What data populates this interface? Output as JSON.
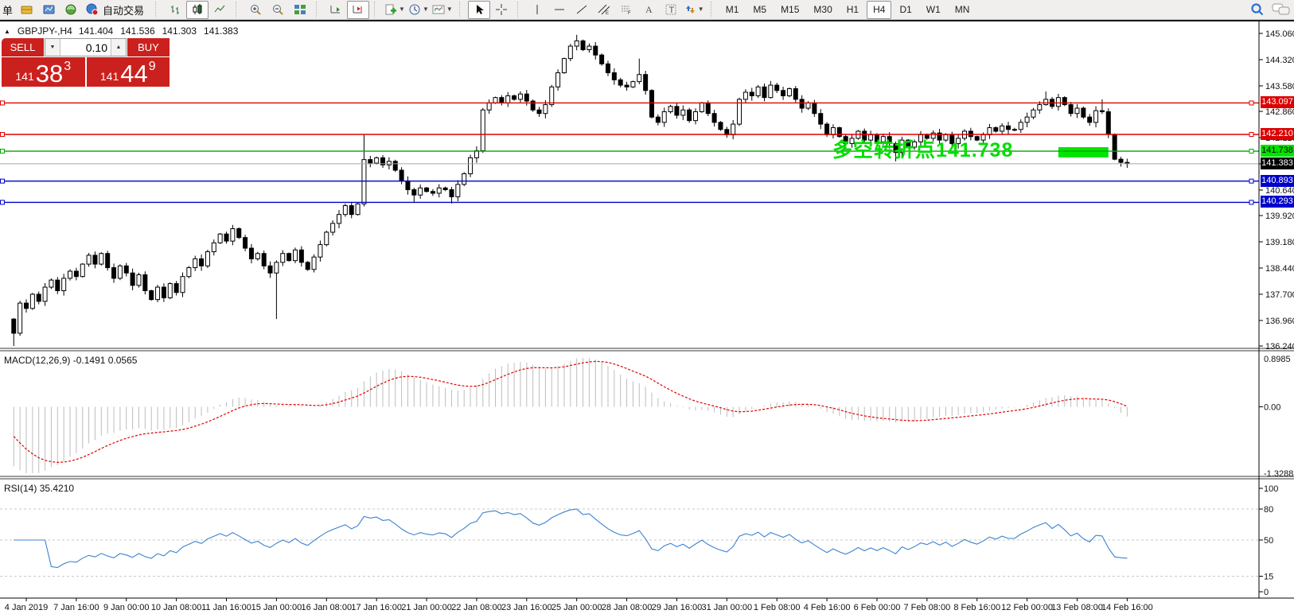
{
  "toolbar": {
    "order_label": "单",
    "autotrading_label": "自动交易",
    "timeframes": [
      "M1",
      "M5",
      "M15",
      "M30",
      "H1",
      "H4",
      "D1",
      "W1",
      "MN"
    ],
    "active_timeframe": "H4",
    "active_chart_type": "candlestick"
  },
  "chart": {
    "title": {
      "symbol_period": "GBPJPY-,H4",
      "open": "141.404",
      "high": "141.536",
      "low": "141.303",
      "close": "141.383"
    },
    "one_click": {
      "sell_label": "SELL",
      "buy_label": "BUY",
      "volume": "0.10",
      "sell_price_prefix": "141",
      "sell_price_big": "38",
      "sell_price_sup": "3",
      "buy_price_prefix": "141",
      "buy_price_big": "44",
      "buy_price_sup": "9"
    },
    "annotation": {
      "text": "多空转折点141.738",
      "color": "#00dd00"
    },
    "current_price": {
      "price": 141.383,
      "label": "141.383",
      "line_color": "#a8a8a8",
      "label_bg": "#000000",
      "label_fg": "#ffffff"
    },
    "levels": [
      {
        "price": 143.097,
        "label": "143.097",
        "line_color": "#e00000",
        "label_bg": "#dd0000",
        "label_fg": "#ffffff"
      },
      {
        "price": 142.21,
        "label": "142.210",
        "line_color": "#e00000",
        "label_bg": "#dd0000",
        "label_fg": "#ffffff"
      },
      {
        "price": 141.738,
        "label": "141.738",
        "line_color": "#00a800",
        "label_bg": "#00e400",
        "label_fg": "#000000"
      },
      {
        "price": 140.893,
        "label": "140.893",
        "line_color": "#0000cc",
        "label_bg": "#0000cc",
        "label_fg": "#ffffff"
      },
      {
        "price": 140.293,
        "label": "140.293",
        "line_color": "#0000cc",
        "label_bg": "#0000cc",
        "label_fg": "#ffffff"
      }
    ],
    "rectangle": {
      "bar_start": 167,
      "bar_end": 175,
      "price_top": 141.85,
      "price_bottom": 141.56,
      "color": "#00e400"
    }
  },
  "macd": {
    "label": "MACD(12,26,9)",
    "values": "-0.1491 0.0565",
    "axis_top": "0.8985",
    "axis_zero": "0.00",
    "axis_bottom": "-1.3288",
    "params": [
      12,
      26,
      9
    ]
  },
  "rsi": {
    "label": "RSI(14)",
    "value": "35.4210",
    "period": 14,
    "axis_labels": [
      "100",
      "80",
      "50",
      "15",
      "0"
    ],
    "axis_values": [
      100,
      80,
      50,
      15,
      0
    ],
    "levels": [
      80,
      50,
      15
    ]
  },
  "price_axis_ticks": [
    "145.060",
    "144.320",
    "143.580",
    "142.860",
    "142.120",
    "141.380",
    "140.640",
    "139.920",
    "139.180",
    "138.440",
    "137.700",
    "136.960",
    "136.240"
  ],
  "time_axis": [
    "4 Jan 2019",
    "7 Jan 16:00",
    "9 Jan 00:00",
    "10 Jan 08:00",
    "11 Jan 16:00",
    "15 Jan 00:00",
    "16 Jan 08:00",
    "17 Jan 16:00",
    "21 Jan 00:00",
    "22 Jan 08:00",
    "23 Jan 16:00",
    "25 Jan 00:00",
    "28 Jan 08:00",
    "29 Jan 16:00",
    "31 Jan 00:00",
    "1 Feb 08:00",
    "4 Feb 16:00",
    "6 Feb 00:00",
    "7 Feb 08:00",
    "8 Feb 16:00",
    "12 Feb 00:00",
    "13 Feb 08:00",
    "14 Feb 16:00"
  ],
  "chart_data": {
    "type": "candlestick",
    "symbol": "GBPJPY-",
    "timeframe": "H4",
    "ohlc_current": {
      "open": 141.404,
      "high": 141.536,
      "low": 141.303,
      "close": 141.383
    },
    "price_axis": {
      "min": 136.24,
      "max": 145.06,
      "step": 0.74
    },
    "first_label_bar": 2,
    "label_every": 8,
    "seed_closes": [
      142.0,
      141.6,
      141.2,
      140.6,
      139.8,
      138.8,
      137.8,
      137.0
    ],
    "closes": [
      136.6,
      137.45,
      137.3,
      137.7,
      137.5,
      137.9,
      138.1,
      137.8,
      138.15,
      138.35,
      138.2,
      138.55,
      138.8,
      138.55,
      138.85,
      138.45,
      138.15,
      138.5,
      138.3,
      137.95,
      138.25,
      137.8,
      137.55,
      137.9,
      137.6,
      138.0,
      137.75,
      138.2,
      138.45,
      138.7,
      138.5,
      138.9,
      139.15,
      139.4,
      139.2,
      139.55,
      139.3,
      139.0,
      138.7,
      138.85,
      138.5,
      138.3,
      138.6,
      138.85,
      138.65,
      138.95,
      138.6,
      138.4,
      138.75,
      139.1,
      139.45,
      139.7,
      139.95,
      140.2,
      139.95,
      140.25,
      141.5,
      141.4,
      141.55,
      141.35,
      141.45,
      141.2,
      140.9,
      140.65,
      140.5,
      140.7,
      140.6,
      140.55,
      140.7,
      140.65,
      140.45,
      140.8,
      141.1,
      141.55,
      141.75,
      142.9,
      143.1,
      143.25,
      143.1,
      143.3,
      143.2,
      143.35,
      143.15,
      142.9,
      142.8,
      143.05,
      143.55,
      143.95,
      144.35,
      144.7,
      144.85,
      144.6,
      144.7,
      144.45,
      144.2,
      143.95,
      143.75,
      143.6,
      143.55,
      143.7,
      143.9,
      143.45,
      142.7,
      142.55,
      142.85,
      143.0,
      142.75,
      142.9,
      142.6,
      142.85,
      143.1,
      142.8,
      142.55,
      142.35,
      142.2,
      142.5,
      143.2,
      143.4,
      143.3,
      143.55,
      143.25,
      143.6,
      143.45,
      143.3,
      143.5,
      143.2,
      142.95,
      143.1,
      142.8,
      142.5,
      142.2,
      142.4,
      142.15,
      141.95,
      142.1,
      142.3,
      142.05,
      142.2,
      142.0,
      142.15,
      141.95,
      141.7,
      142.05,
      141.85,
      142.0,
      142.2,
      142.1,
      142.25,
      142.05,
      142.2,
      141.95,
      142.1,
      142.3,
      142.15,
      142.05,
      142.2,
      142.4,
      142.3,
      142.45,
      142.35,
      142.35,
      142.55,
      142.7,
      142.9,
      143.05,
      143.2,
      143.0,
      143.25,
      143.05,
      142.8,
      142.95,
      142.7,
      142.55,
      142.88,
      142.85,
      142.21,
      141.51,
      141.42,
      141.383
    ],
    "wick_overrides": {
      "0": {
        "l": 136.24
      },
      "42": {
        "l": 137.0
      },
      "56": {
        "h": 142.2
      },
      "64": {
        "l": 140.3
      },
      "70": {
        "l": 140.26
      },
      "90": {
        "h": 145.02
      },
      "100": {
        "h": 144.35
      },
      "121": {
        "h": 143.72
      },
      "141": {
        "l": 141.45
      },
      "165": {
        "h": 143.42
      },
      "174": {
        "h": 143.2
      },
      "177": {
        "l": 141.3
      }
    },
    "macd_title_values": [
      -0.1491,
      0.0565
    ],
    "rsi_current": 35.421
  }
}
